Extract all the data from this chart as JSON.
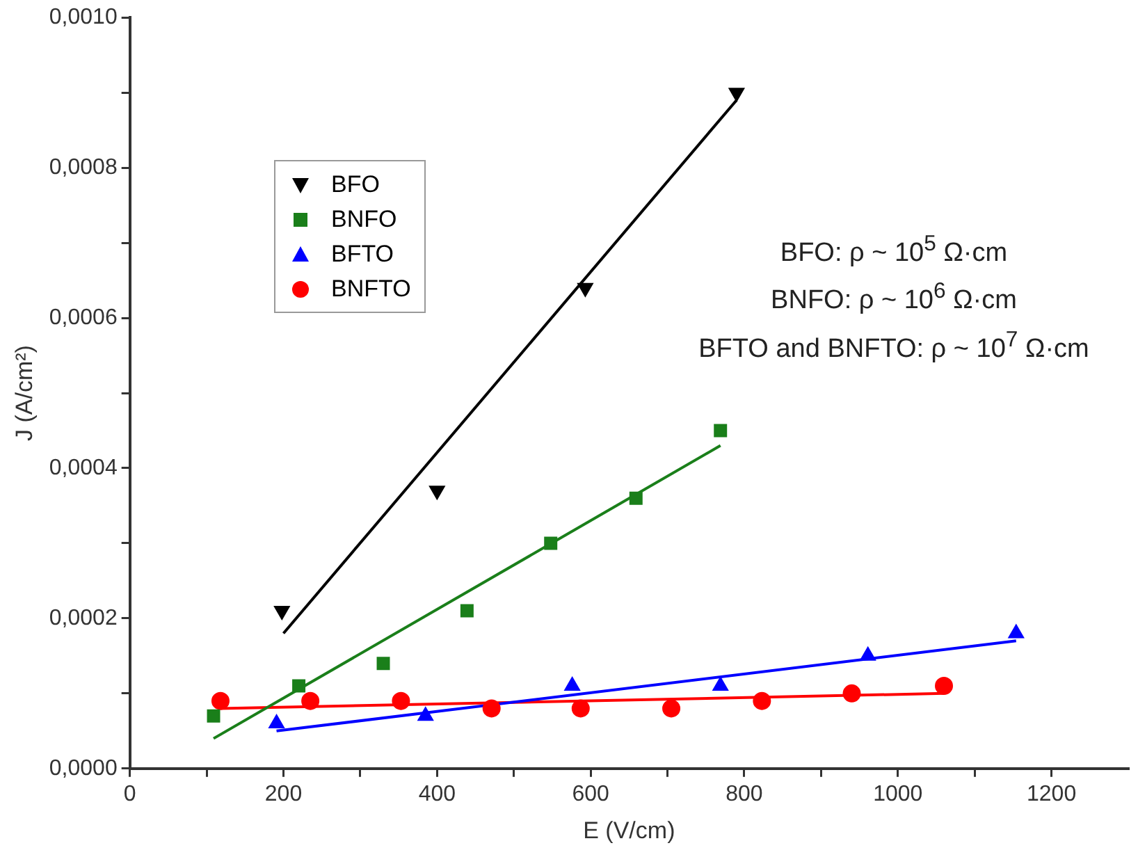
{
  "chart_data": {
    "type": "scatter",
    "xlabel": "E (V/cm)",
    "ylabel": "J (A/cm²)",
    "xlim": [
      0,
      1300
    ],
    "xticks": [
      0,
      {
        "value": 100,
        "label": null
      },
      200,
      {
        "value": 300,
        "label": null
      },
      400,
      {
        "value": 500,
        "label": null
      },
      600,
      {
        "value": 700,
        "label": null
      },
      800,
      {
        "value": 900,
        "label": null
      },
      1000,
      {
        "value": 1100,
        "label": null
      },
      1200
    ],
    "ylim": [
      0,
      0.001
    ],
    "yticks": [
      {
        "value": 0,
        "label": "0,0000"
      },
      {
        "value": 0.0001,
        "label": null
      },
      {
        "value": 0.0002,
        "label": "0,0002"
      },
      {
        "value": 0.0003,
        "label": null
      },
      {
        "value": 0.0004,
        "label": "0,0004"
      },
      {
        "value": 0.0005,
        "label": null
      },
      {
        "value": 0.0006,
        "label": "0,0006"
      },
      {
        "value": 0.0007,
        "label": null
      },
      {
        "value": 0.0008,
        "label": "0,0008"
      },
      {
        "value": 0.0009,
        "label": null
      },
      {
        "value": 0.001,
        "label": "0,0010"
      }
    ],
    "grid": false,
    "legend": "top left",
    "annotations": [
      "BFO: ρ ~ 10$^{5}$ Ω·cm",
      "BNFO: ρ ~ 10$^{6}$ Ω·cm",
      "BFTO and BNFTO: ρ ~ 10$^{7}$ Ω·cm"
    ],
    "series": [
      {
        "name": "BFO",
        "color": "#000000",
        "marker": "triangle-down",
        "x": [
          198,
          400,
          593,
          790
        ],
        "values": [
          0.00021,
          0.00037,
          0.00064,
          0.0009
        ]
      },
      {
        "name": "BNFO",
        "color": "#1a7f1a",
        "marker": "square",
        "x": [
          109,
          220,
          330,
          439,
          548,
          659,
          769
        ],
        "values": [
          7e-05,
          0.00011,
          0.00014,
          0.00021,
          0.0003,
          0.00036,
          0.00045
        ]
      },
      {
        "name": "BFTO",
        "color": "#0000ff",
        "marker": "triangle",
        "x": [
          191,
          385,
          576,
          769,
          961,
          1154
        ],
        "values": [
          6e-05,
          7e-05,
          0.00011,
          0.00011,
          0.00015,
          0.00018
        ]
      },
      {
        "name": "BNFTO",
        "color": "#ff0000",
        "marker": "circle",
        "x": [
          118,
          235,
          353,
          471,
          587,
          705,
          823,
          940,
          1060
        ],
        "values": [
          9e-05,
          9e-05,
          9e-05,
          8e-05,
          8e-05,
          8e-05,
          9e-05,
          0.0001,
          0.00011
        ]
      },
      {
        "type": "line",
        "color": "#000000",
        "marker": "none",
        "x": [
          200,
          790
        ],
        "values": [
          0.00018,
          0.00089
        ]
      },
      {
        "type": "line",
        "color": "#1a7f1a",
        "marker": "none",
        "x": [
          109,
          769
        ],
        "values": [
          4e-05,
          0.00043
        ]
      },
      {
        "type": "line",
        "color": "#0000ff",
        "marker": "none",
        "x": [
          191,
          1154
        ],
        "values": [
          5e-05,
          0.00017
        ]
      },
      {
        "type": "line",
        "color": "#ff0000",
        "marker": "none",
        "x": [
          118,
          1060
        ],
        "values": [
          8e-05,
          0.0001
        ]
      }
    ]
  }
}
